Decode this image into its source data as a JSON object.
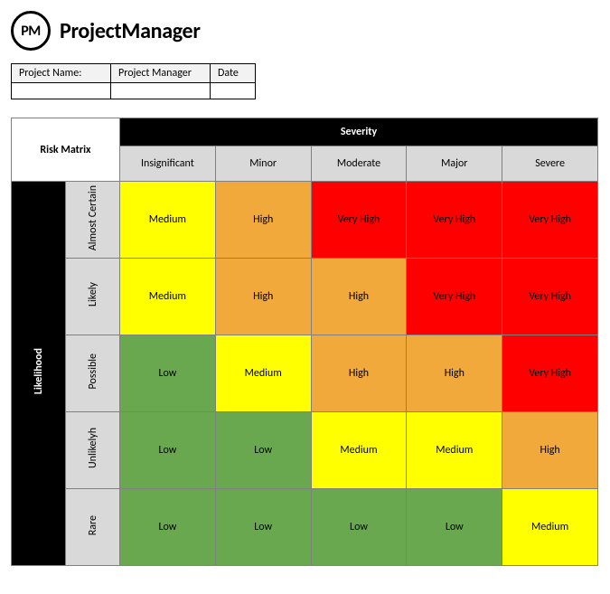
{
  "logo": {
    "badge": "PM",
    "text": "ProjectManager"
  },
  "meta": {
    "labels": {
      "project_name": "Project Name:",
      "project_manager": "Project Manager",
      "date": "Date"
    },
    "values": {
      "project_name": "",
      "project_manager": "",
      "date": ""
    }
  },
  "matrix": {
    "corner_label": "Risk Matrix",
    "severity_header": "Severity",
    "likelihood_header": "Likelihood",
    "severity_levels": [
      "Insignificant",
      "Minor",
      "Moderate",
      "Major",
      "Severe"
    ],
    "likelihood_levels": [
      "Almost Certain",
      "Likely",
      "Possible",
      "Unlikelyh",
      "Rare"
    ],
    "colors": {
      "low": "#6aa84f",
      "medium": "#ffff00",
      "high": "#f1a93b",
      "very_high": "#ff0000"
    },
    "rows": [
      [
        {
          "label": "Medium",
          "c": "medium"
        },
        {
          "label": "High",
          "c": "high"
        },
        {
          "label": "Very High",
          "c": "very_high"
        },
        {
          "label": "Very High",
          "c": "very_high"
        },
        {
          "label": "Very High",
          "c": "very_high"
        }
      ],
      [
        {
          "label": "Medium",
          "c": "medium"
        },
        {
          "label": "High",
          "c": "high"
        },
        {
          "label": "High",
          "c": "high"
        },
        {
          "label": "Very High",
          "c": "very_high"
        },
        {
          "label": "Very High",
          "c": "very_high"
        }
      ],
      [
        {
          "label": "Low",
          "c": "low"
        },
        {
          "label": "Medium",
          "c": "medium"
        },
        {
          "label": "High",
          "c": "high"
        },
        {
          "label": "High",
          "c": "high"
        },
        {
          "label": "Very High",
          "c": "very_high"
        }
      ],
      [
        {
          "label": "Low",
          "c": "low"
        },
        {
          "label": "Low",
          "c": "low"
        },
        {
          "label": "Medium",
          "c": "medium"
        },
        {
          "label": "Medium",
          "c": "medium"
        },
        {
          "label": "High",
          "c": "high"
        }
      ],
      [
        {
          "label": "Low",
          "c": "low"
        },
        {
          "label": "Low",
          "c": "low"
        },
        {
          "label": "Low",
          "c": "low"
        },
        {
          "label": "Low",
          "c": "low"
        },
        {
          "label": "Medium",
          "c": "medium"
        }
      ]
    ]
  }
}
